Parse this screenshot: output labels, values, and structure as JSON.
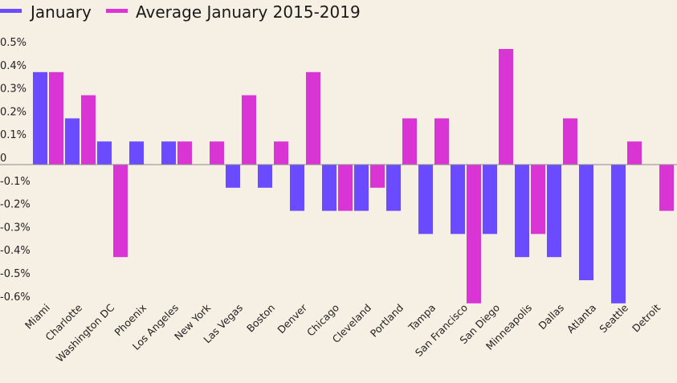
{
  "chart_data": {
    "type": "bar",
    "title": "",
    "xlabel": "",
    "ylabel": "",
    "ylim": [
      -0.6,
      0.5
    ],
    "yticks": [
      "0.5%",
      "0.4%",
      "0.3%",
      "0.2%",
      "0.1%",
      "0",
      "-0.1%",
      "-0.2%",
      "-0.3%",
      "-0.4%",
      "-0.5%",
      "-0.6%"
    ],
    "ytick_values": [
      0.5,
      0.4,
      0.3,
      0.2,
      0.1,
      0,
      -0.1,
      -0.2,
      -0.3,
      -0.4,
      -0.5,
      -0.6
    ],
    "legend_position": "top-left",
    "grid": false,
    "categories": [
      "Miami",
      "Charlotte",
      "Washington DC",
      "Phoenix",
      "Los Angeles",
      "New York",
      "Las Vegas",
      "Boston",
      "Denver",
      "Chicago",
      "Cleveland",
      "Portland",
      "Tampa",
      "San Francisco",
      "San Diego",
      "Minneapolis",
      "Dallas",
      "Atlanta",
      "Seattle",
      "Detroit"
    ],
    "series": [
      {
        "name": "January",
        "color": "#6a4bff",
        "values": [
          0.4,
          0.2,
          0.1,
          0.1,
          0.1,
          0,
          -0.1,
          -0.1,
          -0.2,
          -0.2,
          -0.2,
          -0.2,
          -0.3,
          -0.3,
          -0.3,
          -0.4,
          -0.4,
          -0.5,
          -0.6,
          0
        ]
      },
      {
        "name": "Average January 2015-2019",
        "color": "#d935d4",
        "values": [
          0.4,
          0.3,
          -0.4,
          0,
          0.1,
          0.1,
          0.3,
          0.1,
          0.4,
          -0.2,
          -0.1,
          0.2,
          0.2,
          -0.6,
          0.5,
          -0.3,
          0.2,
          0,
          0.1,
          -0.2
        ]
      }
    ]
  }
}
